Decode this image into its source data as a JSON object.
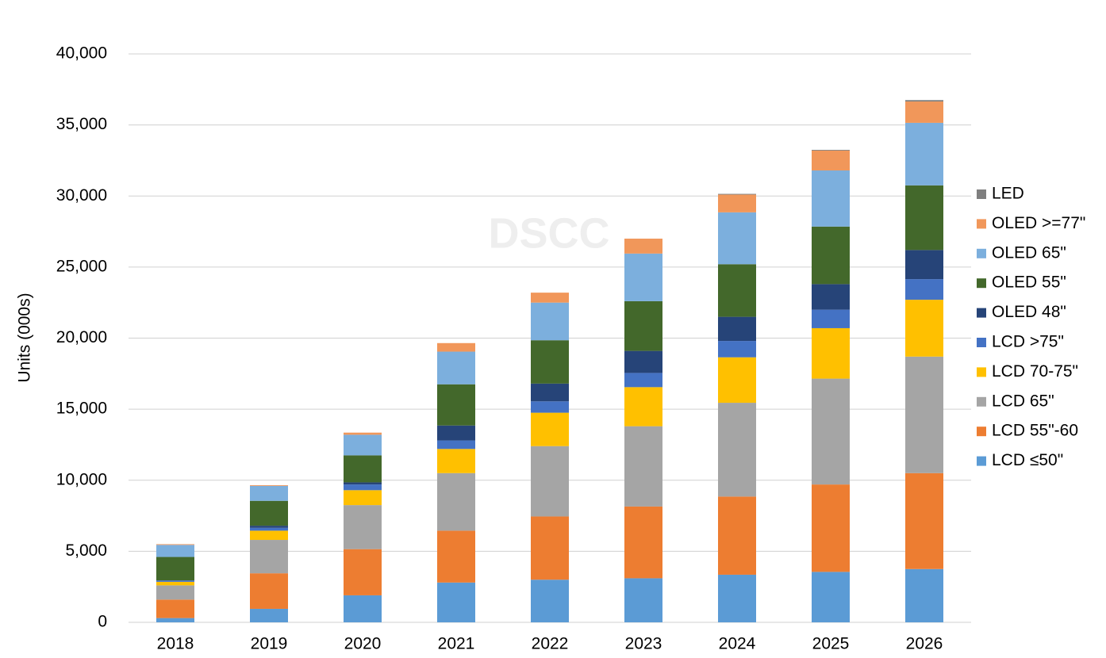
{
  "chart_data": {
    "type": "stacked_bar",
    "y_label": "Units (000s)",
    "watermark": "DSCC",
    "categories": [
      "2018",
      "2019",
      "2020",
      "2021",
      "2022",
      "2023",
      "2024",
      "2025",
      "2026"
    ],
    "series": [
      {
        "name": "LCD ≤50\"",
        "color": "#5b9bd5",
        "values": [
          300,
          950,
          1900,
          2800,
          3000,
          3100,
          3350,
          3550,
          3750
        ]
      },
      {
        "name": "LCD 55\"-60",
        "color": "#ed7d31",
        "values": [
          1300,
          2500,
          3250,
          3650,
          4450,
          5050,
          5500,
          6150,
          6750
        ]
      },
      {
        "name": "LCD 65\"",
        "color": "#a5a5a5",
        "values": [
          1000,
          2350,
          3100,
          4050,
          4950,
          5650,
          6600,
          7450,
          8200
        ]
      },
      {
        "name": "LCD 70-75\"",
        "color": "#ffc000",
        "values": [
          250,
          650,
          1050,
          1700,
          2350,
          2750,
          3200,
          3550,
          4000
        ]
      },
      {
        "name": "LCD >75\"",
        "color": "#4472c4",
        "values": [
          100,
          200,
          400,
          600,
          800,
          1000,
          1150,
          1300,
          1450
        ]
      },
      {
        "name": "OLED 48\"",
        "color": "#264478",
        "values": [
          0,
          150,
          150,
          1050,
          1250,
          1550,
          1700,
          1800,
          2050
        ]
      },
      {
        "name": "OLED 55\"",
        "color": "#43682b",
        "values": [
          1650,
          1750,
          1900,
          2900,
          3050,
          3500,
          3700,
          4050,
          4550
        ]
      },
      {
        "name": "OLED 65\"",
        "color": "#7cafdd",
        "values": [
          850,
          1050,
          1450,
          2300,
          2650,
          3350,
          3650,
          3950,
          4400
        ]
      },
      {
        "name": "OLED >=77\"",
        "color": "#f1975a",
        "values": [
          50,
          50,
          150,
          600,
          700,
          1050,
          1250,
          1400,
          1500
        ]
      },
      {
        "name": "LED",
        "color": "#7f7f7f",
        "values": [
          0,
          0,
          0,
          0,
          0,
          0,
          50,
          50,
          100
        ]
      }
    ],
    "ylim": [
      0,
      40000
    ],
    "yticks": [
      0,
      {
        "value": 5000,
        "label": "5,000"
      },
      {
        "value": 10000,
        "label": "10,000"
      },
      {
        "value": 15000,
        "label": "15,000"
      },
      {
        "value": 20000,
        "label": "20,000"
      },
      {
        "value": 25000,
        "label": "25,000"
      },
      {
        "value": 30000,
        "label": "30,000"
      },
      {
        "value": 35000,
        "label": "35,000"
      },
      {
        "value": 40000,
        "label": "40,000"
      }
    ],
    "grid": true,
    "legend": "right"
  }
}
